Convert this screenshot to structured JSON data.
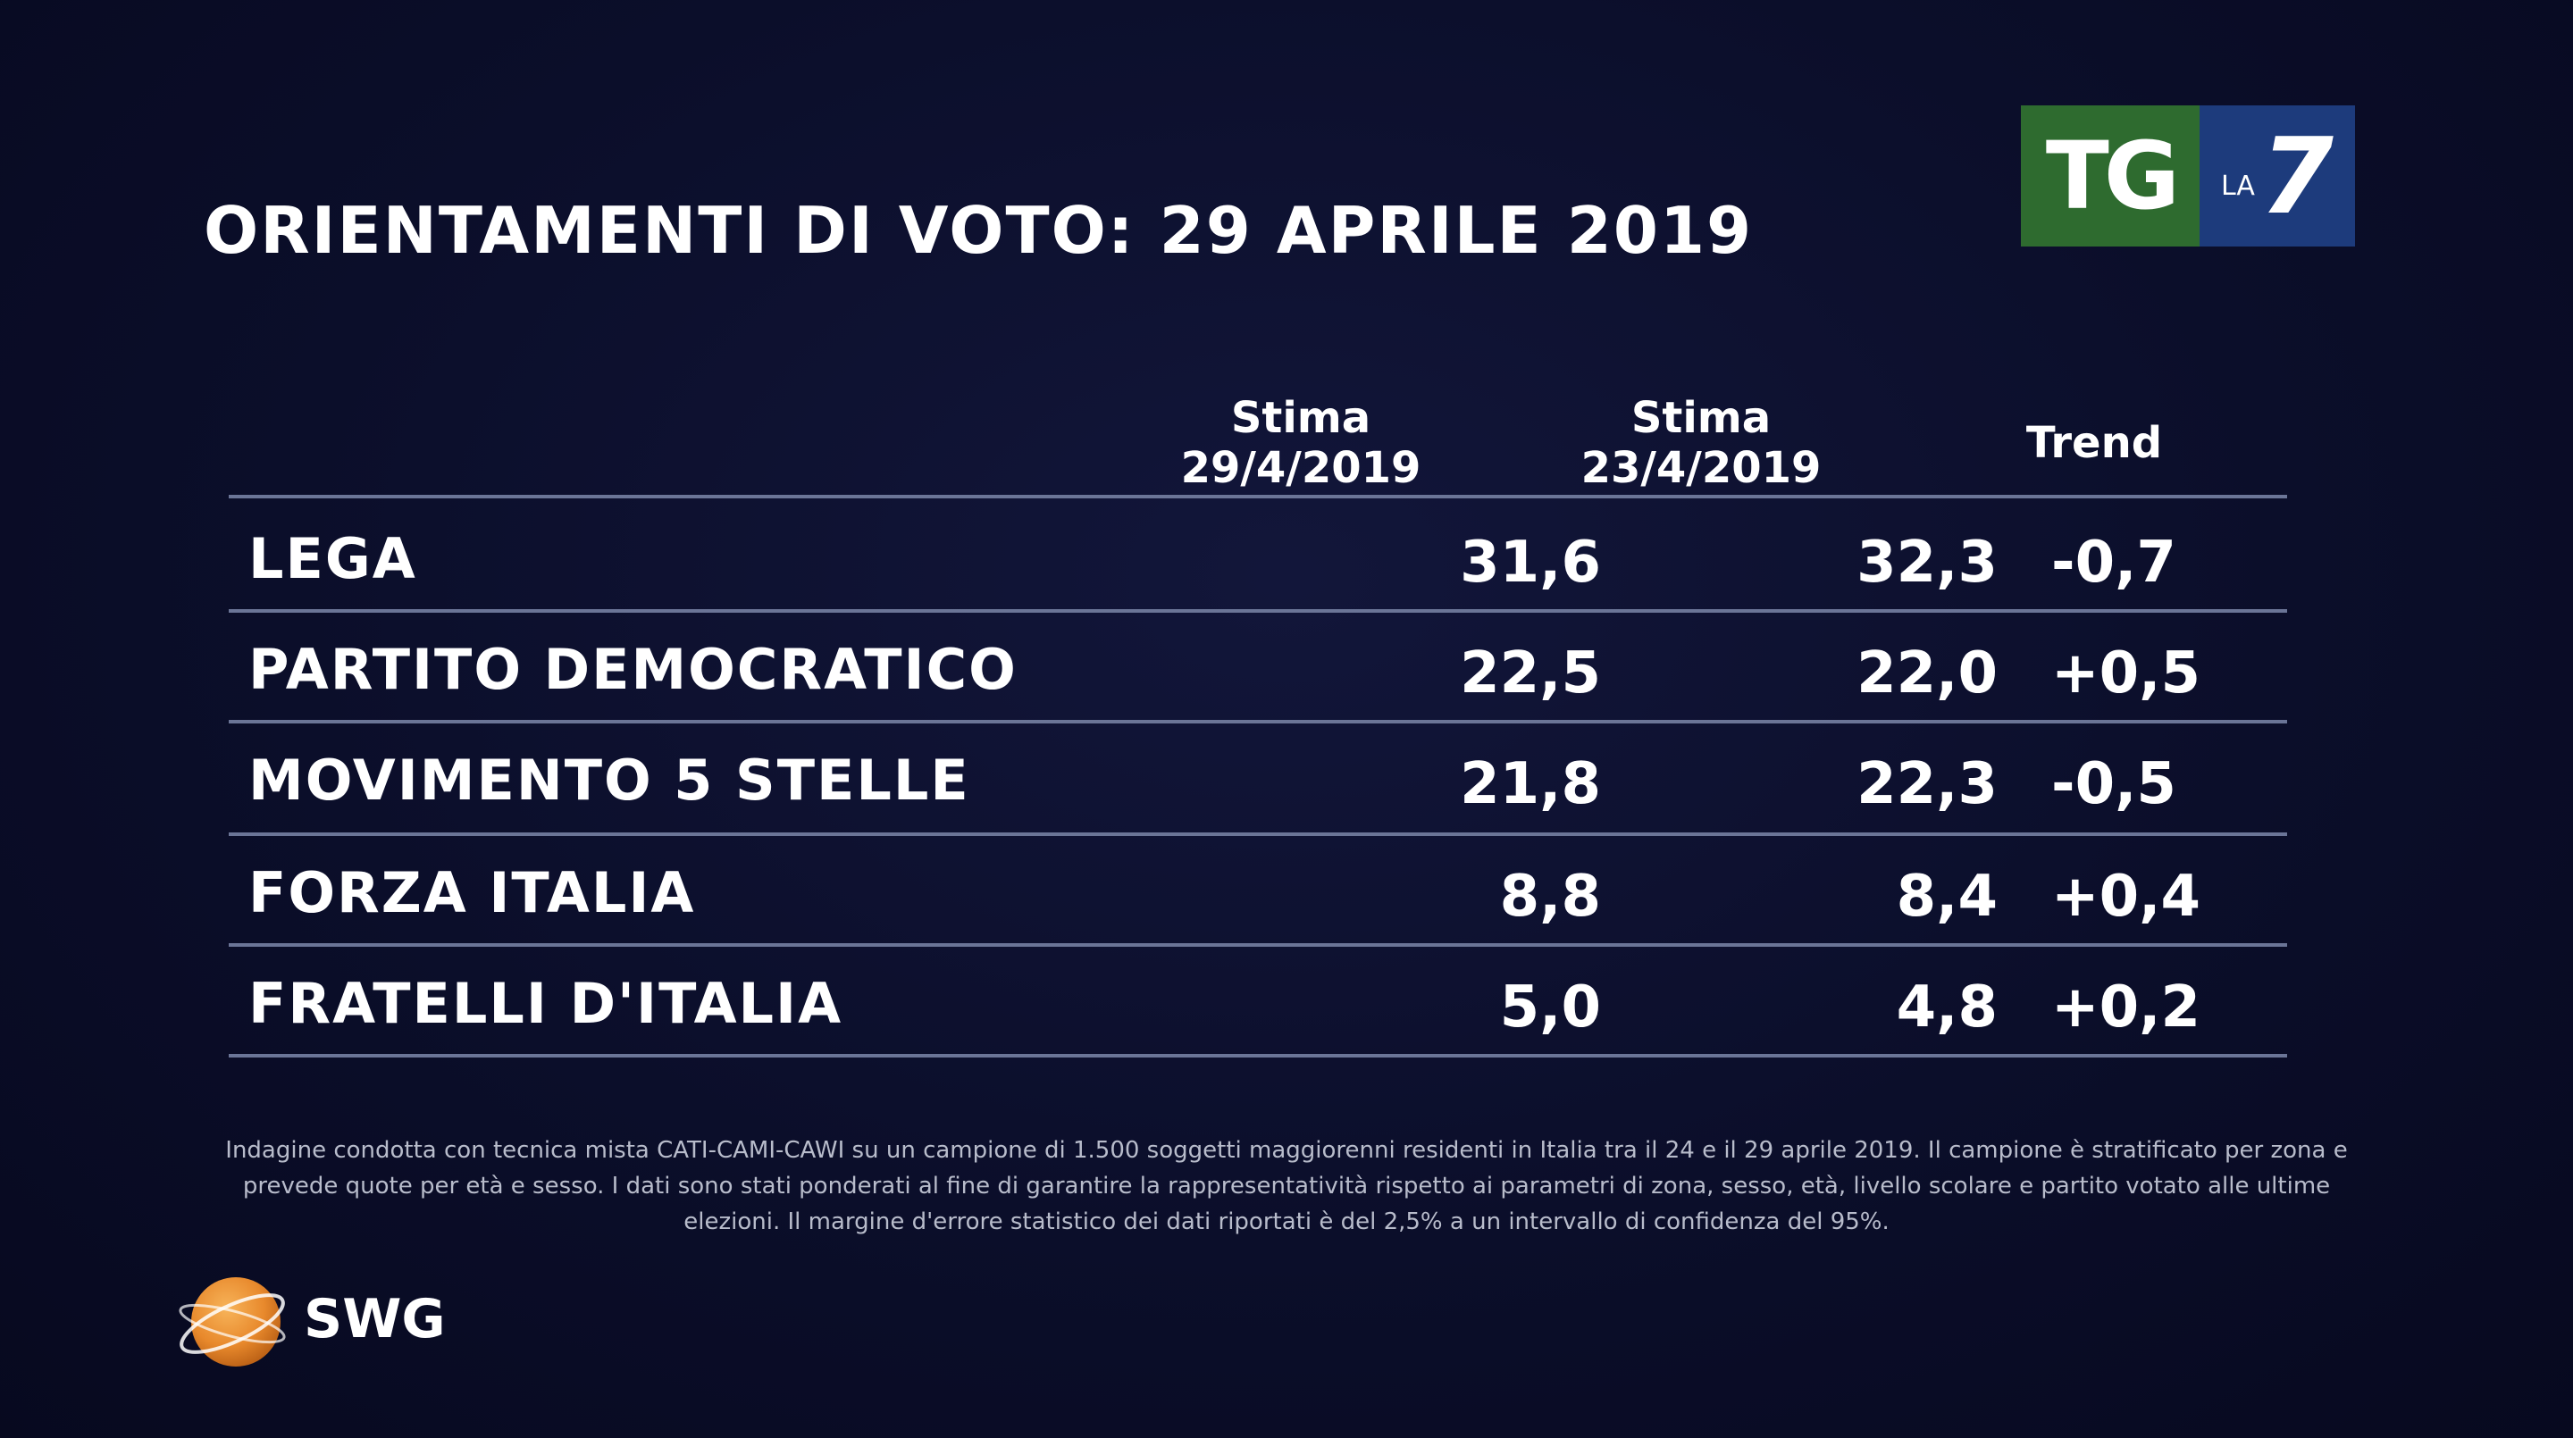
{
  "title": "ORIENTAMENTI DI VOTO: 29 APRILE 2019",
  "logo": {
    "tg": "TG",
    "la": "LA",
    "seven": "7"
  },
  "columns": {
    "c1_line1": "Stima",
    "c1_line2": "29/4/2019",
    "c2_line1": "Stima",
    "c2_line2": "23/4/2019",
    "c3": "Trend"
  },
  "chart_data": {
    "type": "table",
    "title": "ORIENTAMENTI DI VOTO: 29 APRILE 2019",
    "columns": [
      "Stima 29/4/2019",
      "Stima 23/4/2019",
      "Trend"
    ],
    "rows": [
      {
        "party": "LEGA",
        "stima_29_4": "31,6",
        "stima_23_4": "32,3",
        "trend": "-0,7"
      },
      {
        "party": "PARTITO DEMOCRATICO",
        "stima_29_4": "22,5",
        "stima_23_4": "22,0",
        "trend": "+0,5"
      },
      {
        "party": "MOVIMENTO 5 STELLE",
        "stima_29_4": "21,8",
        "stima_23_4": "22,3",
        "trend": "-0,5"
      },
      {
        "party": "FORZA ITALIA",
        "stima_29_4": "8,8",
        "stima_23_4": "8,4",
        "trend": "+0,4"
      },
      {
        "party": "FRATELLI D'ITALIA",
        "stima_29_4": "5,0",
        "stima_23_4": "4,8",
        "trend": "+0,2"
      }
    ]
  },
  "note": "Indagine condotta con tecnica mista CATI-CAMI-CAWI su un campione di 1.500 soggetti maggiorenni residenti in Italia tra il 24 e il 29 aprile 2019. Il campione è stratificato per zona e prevede quote per età e sesso. I dati sono stati ponderati al fine di garantire la rappresentatività rispetto ai parametri di zona, sesso, età, livello scolare e partito votato alle ultime elezioni. Il margine d'errore statistico dei dati riportati è del 2,5% a un intervallo di confidenza del 95%.",
  "brand": "SWG",
  "colors": {
    "background": "#0b0e2a",
    "logo_green": "#2e6b2f",
    "logo_blue": "#1d3b7c",
    "swg_orange": "#e8892c"
  }
}
